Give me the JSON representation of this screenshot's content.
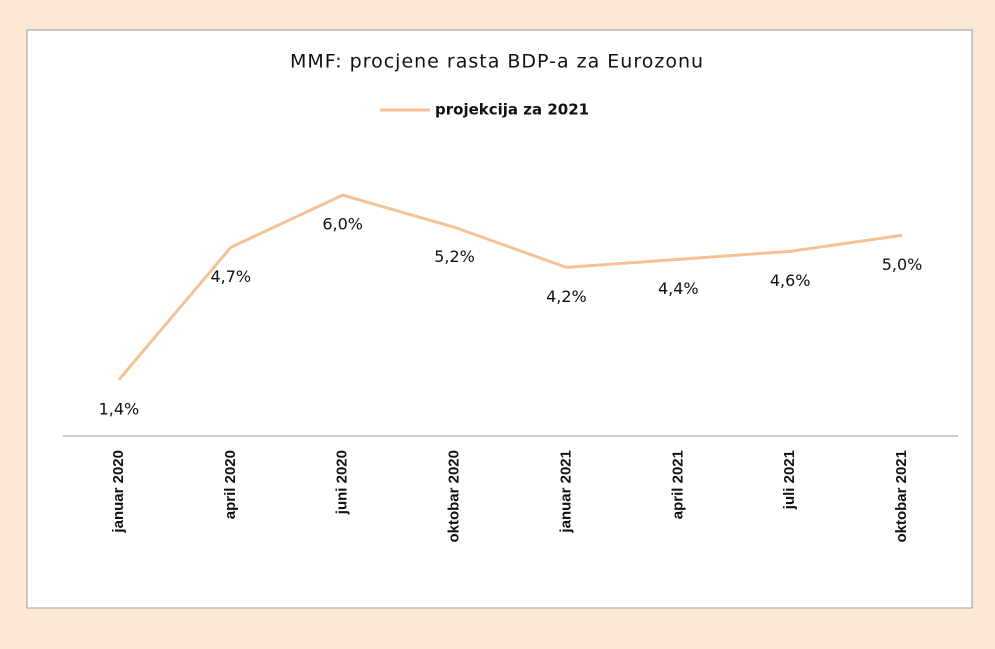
{
  "chart_data": {
    "type": "line",
    "title": "MMF: procjene rasta BDP-a za Eurozonu",
    "categories": [
      "januar 2020",
      "april 2020",
      "juni 2020",
      "oktobar 2020",
      "januar 2021",
      "april 2021",
      "juli 2021",
      "oktobar 2021"
    ],
    "series": [
      {
        "name": "projekcija za 2021",
        "color": "#f5c295",
        "values": [
          1.4,
          4.7,
          6.0,
          5.2,
          4.2,
          4.4,
          4.6,
          5.0
        ],
        "value_labels": [
          "1,4%",
          "4,7%",
          "6,0%",
          "5,2%",
          "4,2%",
          "4,4%",
          "4,6%",
          "5,0%"
        ]
      }
    ],
    "ylim": [
      0,
      7
    ],
    "legend": "top"
  }
}
